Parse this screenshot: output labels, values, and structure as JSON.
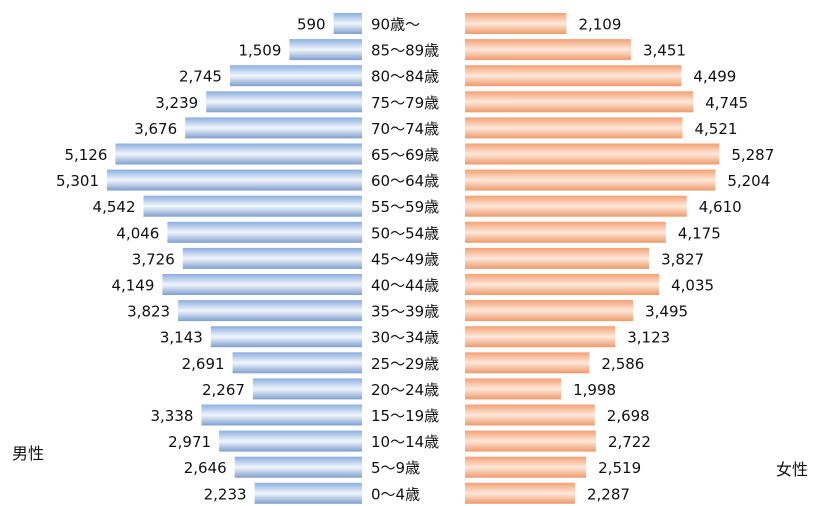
{
  "chart_data": {
    "type": "bar",
    "orientation": "horizontal",
    "layout": "population-pyramid",
    "categories": [
      "90歳～",
      "85～89歳",
      "80～84歳",
      "75～79歳",
      "70～74歳",
      "65～69歳",
      "60～64歳",
      "55～59歳",
      "50～54歳",
      "45～49歳",
      "40～44歳",
      "35～39歳",
      "30～34歳",
      "25～29歳",
      "20～24歳",
      "15～19歳",
      "10～14歳",
      "5～9歳",
      "0～4歳"
    ],
    "series": [
      {
        "name": "男性",
        "side": "left",
        "color": "#7ea3d4",
        "values": [
          590,
          1509,
          2745,
          3239,
          3676,
          5126,
          5301,
          4542,
          4046,
          3726,
          4149,
          3823,
          3143,
          2691,
          2267,
          3338,
          2971,
          2646,
          2233
        ],
        "labels": [
          "590",
          "1,509",
          "2,745",
          "3,239",
          "3,676",
          "5,126",
          "5,301",
          "4,542",
          "4,046",
          "3,726",
          "4,149",
          "3,823",
          "3,143",
          "2,691",
          "2,267",
          "3,338",
          "2,971",
          "2,646",
          "2,233"
        ]
      },
      {
        "name": "女性",
        "side": "right",
        "color": "#f3a679",
        "values": [
          2109,
          3451,
          4499,
          4745,
          4521,
          5287,
          5204,
          4610,
          4175,
          3827,
          4035,
          3495,
          3123,
          2586,
          1998,
          2698,
          2722,
          2519,
          2287
        ],
        "labels": [
          "2,109",
          "3,451",
          "4,499",
          "4,745",
          "4,521",
          "5,287",
          "5,204",
          "4,610",
          "4,175",
          "3,827",
          "4,035",
          "3,495",
          "3,123",
          "2,586",
          "1,998",
          "2,698",
          "2,722",
          "2,519",
          "2,287"
        ]
      }
    ],
    "xlim": [
      0,
      5301
    ],
    "legend": "none",
    "grid": false
  },
  "labels": {
    "male": "男性",
    "female": "女性"
  }
}
